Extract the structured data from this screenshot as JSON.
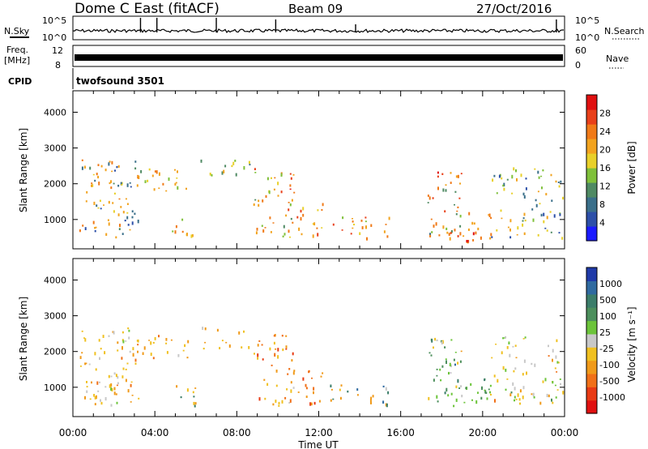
{
  "header": {
    "station": "Dome C East (fitACF)",
    "beam": "Beam 09",
    "date": "27/Oct/2016"
  },
  "noise_panel": {
    "left_label": "N.Sky",
    "right_label": "N.Search",
    "ticks": [
      "10^5",
      "10^0"
    ]
  },
  "freq_panel": {
    "left_label_1": "Freq.",
    "left_label_2": "[MHz]",
    "left_ticks": [
      "12",
      "8"
    ],
    "right_label": "Nave",
    "right_ticks": [
      "60",
      "0"
    ]
  },
  "cpid": {
    "label": "CPID",
    "value": "twofsound 3501"
  },
  "chart_data": [
    {
      "type": "heatmap",
      "title": "",
      "ylabel": "Slant Range [km]",
      "xlabel": "",
      "x_tick_labels": [
        "00:00",
        "04:00",
        "08:00",
        "12:00",
        "16:00",
        "20:00",
        "00:00"
      ],
      "xlim_hours": [
        0,
        24
      ],
      "ylim": [
        180,
        4600
      ],
      "y_ticks": [
        1000,
        2000,
        3000,
        4000
      ],
      "colorbar": {
        "label": "Power [dB]",
        "ticks": [
          "4",
          "8",
          "12",
          "16",
          "20",
          "24",
          "28"
        ],
        "colors": [
          "#1a1aff",
          "#2c4fa8",
          "#3a6f8a",
          "#4f8a63",
          "#7fc03a",
          "#e8d02a",
          "#f2a31f",
          "#f07a18",
          "#e8401a",
          "#e01010"
        ]
      }
    },
    {
      "type": "heatmap",
      "title": "",
      "ylabel": "Slant Range [km]",
      "xlabel": "Time UT",
      "x_tick_labels": [
        "00:00",
        "04:00",
        "08:00",
        "12:00",
        "16:00",
        "20:00",
        "00:00"
      ],
      "xlim_hours": [
        0,
        24
      ],
      "ylim": [
        180,
        4600
      ],
      "y_ticks": [
        1000,
        2000,
        3000,
        4000
      ],
      "colorbar": {
        "label": "Velocity [m s⁻¹]",
        "ticks": [
          "1000",
          "500",
          "100",
          "25",
          "-25",
          "-100",
          "-500",
          "-1000"
        ],
        "colors": [
          "#1f3aa8",
          "#2f6aa0",
          "#3b7d6a",
          "#4c8f5c",
          "#6cc43a",
          "#c8c8c8",
          "#f0c020",
          "#f09a1a",
          "#f07018",
          "#e83a14",
          "#e01010"
        ]
      }
    }
  ],
  "echo_regions": [
    {
      "t0": 0.3,
      "t1": 3.2,
      "r0": 500,
      "r1": 2700,
      "p": [
        8,
        20,
        24
      ],
      "v": [
        0,
        -1,
        -2
      ],
      "d": 0.5
    },
    {
      "t0": 2.9,
      "t1": 5.6,
      "r0": 1800,
      "r1": 2500,
      "p": [
        16,
        22,
        24
      ],
      "v": [
        -1,
        -2
      ],
      "d": 0.45
    },
    {
      "t0": 4.8,
      "t1": 6.0,
      "r0": 500,
      "r1": 1100,
      "p": [
        12,
        20,
        24
      ],
      "v": [
        -1,
        -2,
        3
      ],
      "d": 0.5
    },
    {
      "t0": 6.2,
      "t1": 8.6,
      "r0": 2100,
      "r1": 2700,
      "p": [
        12,
        16,
        20
      ],
      "v": [
        -1,
        -2
      ],
      "d": 0.35
    },
    {
      "t0": 8.8,
      "t1": 10.8,
      "r0": 500,
      "r1": 2500,
      "p": [
        16,
        24,
        28
      ],
      "v": [
        -2,
        -3,
        -1
      ],
      "d": 0.45
    },
    {
      "t0": 10.9,
      "t1": 12.2,
      "r0": 500,
      "r1": 1500,
      "p": [
        20,
        24,
        28
      ],
      "v": [
        -2,
        -3
      ],
      "d": 0.5
    },
    {
      "t0": 12.5,
      "t1": 15.5,
      "r0": 500,
      "r1": 1100,
      "p": [
        16,
        24,
        28
      ],
      "v": [
        -1,
        -2,
        3
      ],
      "d": 0.45
    },
    {
      "t0": 17.3,
      "t1": 19.0,
      "r0": 500,
      "r1": 2400,
      "p": [
        12,
        24,
        28
      ],
      "v": [
        2,
        3,
        1,
        -1
      ],
      "d": 0.55
    },
    {
      "t0": 19.0,
      "t1": 20.4,
      "r0": 400,
      "r1": 1300,
      "p": [
        20,
        24,
        28
      ],
      "v": [
        1,
        2,
        -1
      ],
      "d": 0.6
    },
    {
      "t0": 20.4,
      "t1": 23.9,
      "r0": 500,
      "r1": 2500,
      "p": [
        8,
        16,
        20
      ],
      "v": [
        -1,
        -2,
        0,
        1
      ],
      "d": 0.4
    }
  ]
}
